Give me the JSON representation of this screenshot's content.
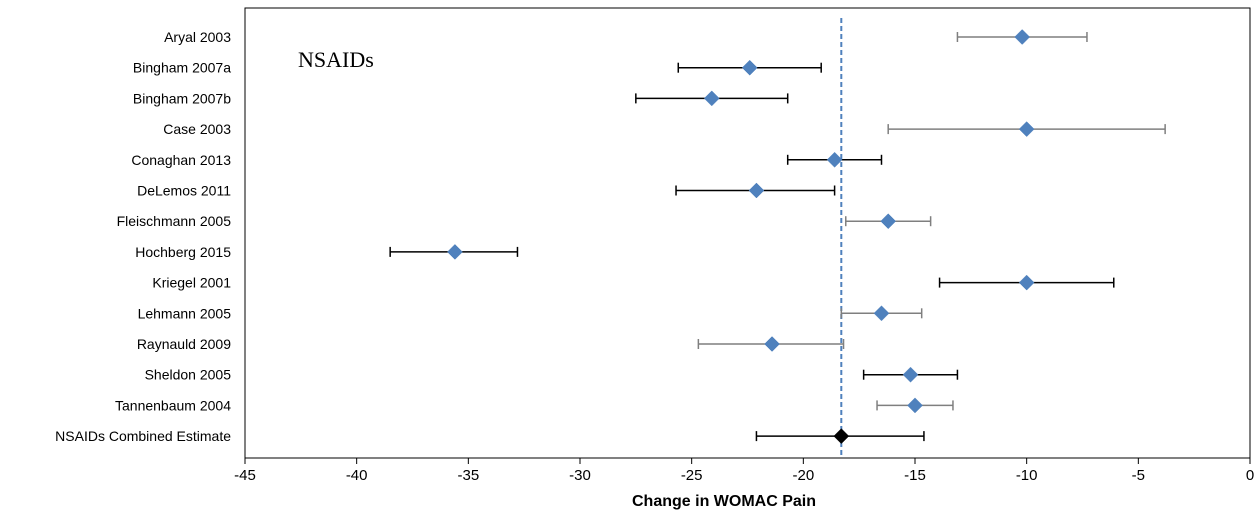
{
  "chart_data": {
    "type": "forest",
    "annotation": "NSAIDs",
    "xlabel": "Change in WOMAC Pain",
    "xlim": [
      -45,
      0
    ],
    "xticks": [
      -45,
      -40,
      -35,
      -30,
      -25,
      -20,
      -15,
      -10,
      -5,
      0
    ],
    "reference_line": -18.3,
    "studies": [
      {
        "label": "Aryal 2003",
        "estimate": -10.2,
        "lower": -13.1,
        "upper": -7.3
      },
      {
        "label": "Bingham 2007a",
        "estimate": -22.4,
        "lower": -25.6,
        "upper": -19.2
      },
      {
        "label": "Bingham 2007b",
        "estimate": -24.1,
        "lower": -27.5,
        "upper": -20.7
      },
      {
        "label": "Case 2003",
        "estimate": -10.0,
        "lower": -16.2,
        "upper": -3.8
      },
      {
        "label": "Conaghan 2013",
        "estimate": -18.6,
        "lower": -20.7,
        "upper": -16.5
      },
      {
        "label": "DeLemos 2011",
        "estimate": -22.1,
        "lower": -25.7,
        "upper": -18.6
      },
      {
        "label": "Fleischmann 2005",
        "estimate": -16.2,
        "lower": -18.1,
        "upper": -14.3
      },
      {
        "label": "Hochberg 2015",
        "estimate": -35.6,
        "lower": -38.5,
        "upper": -32.8
      },
      {
        "label": "Kriegel 2001",
        "estimate": -10.0,
        "lower": -13.9,
        "upper": -6.1
      },
      {
        "label": "Lehmann 2005",
        "estimate": -16.5,
        "lower": -18.3,
        "upper": -14.7
      },
      {
        "label": "Raynauld 2009",
        "estimate": -21.4,
        "lower": -24.7,
        "upper": -18.2
      },
      {
        "label": "Sheldon 2005",
        "estimate": -15.2,
        "lower": -17.3,
        "upper": -13.1
      },
      {
        "label": "Tannenbaum 2004",
        "estimate": -15.0,
        "lower": -16.7,
        "upper": -13.3
      },
      {
        "label": "NSAIDs Combined Estimate",
        "estimate": -18.3,
        "lower": -22.1,
        "upper": -14.6,
        "combined": true
      }
    ],
    "colors": {
      "marker": "#4f81bd",
      "combined_marker": "#000000",
      "whisker_dark": "#000000",
      "whisker_gray": "#7f7f7f",
      "reference_line": "#4f81bd"
    }
  }
}
